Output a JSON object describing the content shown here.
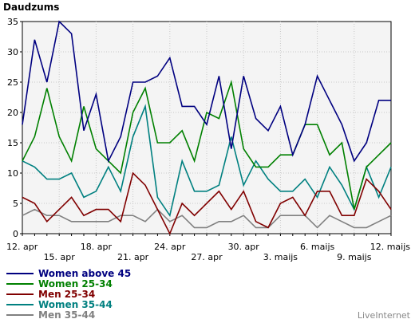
{
  "chart_data": {
    "type": "line",
    "ylabel": "Daudzums",
    "ylim": [
      0,
      35
    ],
    "yticks": [
      0,
      5,
      10,
      15,
      20,
      25,
      30,
      35
    ],
    "grid": true,
    "legend_position": "bottom-left",
    "x": [
      "12. apr",
      "13. apr",
      "14. apr",
      "15. apr",
      "16. apr",
      "17. apr",
      "18. apr",
      "19. apr",
      "20. apr",
      "21. apr",
      "22. apr",
      "23. apr",
      "24. apr",
      "25. apr",
      "26. apr",
      "27. apr",
      "28. apr",
      "29. apr",
      "30. apr",
      "1. maijs",
      "2. maijs",
      "3. maijs",
      "4. maijs",
      "5. maijs",
      "6. maijs",
      "7. maijs",
      "8. maijs",
      "9. maijs",
      "10. maijs",
      "11. maijs",
      "12. maijs"
    ],
    "xtick_labels": [
      {
        "label": "12. apr",
        "x_index": 0,
        "row": 0
      },
      {
        "label": "15. apr",
        "x_index": 3,
        "row": 1
      },
      {
        "label": "18. apr",
        "x_index": 6,
        "row": 0
      },
      {
        "label": "21. apr",
        "x_index": 9,
        "row": 1
      },
      {
        "label": "24. apr",
        "x_index": 12,
        "row": 0
      },
      {
        "label": "27. apr",
        "x_index": 15,
        "row": 1
      },
      {
        "label": "30. apr",
        "x_index": 18,
        "row": 0
      },
      {
        "label": "3. maijs",
        "x_index": 21,
        "row": 1
      },
      {
        "label": "6. maijs",
        "x_index": 24,
        "row": 0
      },
      {
        "label": "9. maijs",
        "x_index": 27,
        "row": 1
      },
      {
        "label": "12. maijs",
        "x_index": 30,
        "row": 0
      }
    ],
    "series": [
      {
        "name": "Women above 45",
        "color": "#000080",
        "values": [
          18,
          32,
          25,
          35,
          33,
          17,
          23,
          12,
          16,
          25,
          25,
          26,
          29,
          21,
          21,
          18,
          26,
          14,
          26,
          19,
          17,
          21,
          13,
          18,
          26,
          22,
          18,
          12,
          15,
          22,
          22
        ]
      },
      {
        "name": "Women 25-34",
        "color": "#008000",
        "values": [
          12,
          16,
          24,
          16,
          12,
          21,
          14,
          12,
          10,
          20,
          24,
          15,
          15,
          17,
          12,
          20,
          19,
          25,
          14,
          11,
          11,
          13,
          13,
          18,
          18,
          13,
          15,
          4,
          11,
          13,
          15
        ]
      },
      {
        "name": "Men 25-34",
        "color": "#800000",
        "values": [
          6,
          5,
          2,
          4,
          6,
          3,
          4,
          4,
          2,
          10,
          8,
          4,
          0,
          5,
          3,
          5,
          7,
          4,
          7,
          2,
          1,
          5,
          6,
          3,
          7,
          7,
          3,
          3,
          9,
          7,
          4
        ]
      },
      {
        "name": "Women 35-44",
        "color": "#008080",
        "values": [
          12,
          11,
          9,
          9,
          10,
          6,
          7,
          11,
          7,
          16,
          21,
          6,
          3,
          12,
          7,
          7,
          8,
          16,
          8,
          12,
          9,
          7,
          7,
          9,
          6,
          11,
          8,
          4,
          11,
          6,
          11
        ]
      },
      {
        "name": "Men 35-44",
        "color": "#808080",
        "values": [
          3,
          4,
          3,
          3,
          2,
          2,
          2,
          2,
          3,
          3,
          2,
          4,
          2,
          3,
          1,
          1,
          2,
          2,
          3,
          1,
          1,
          3,
          3,
          3,
          1,
          3,
          2,
          1,
          1,
          2,
          3
        ]
      }
    ]
  },
  "credit": "LiveInternet"
}
